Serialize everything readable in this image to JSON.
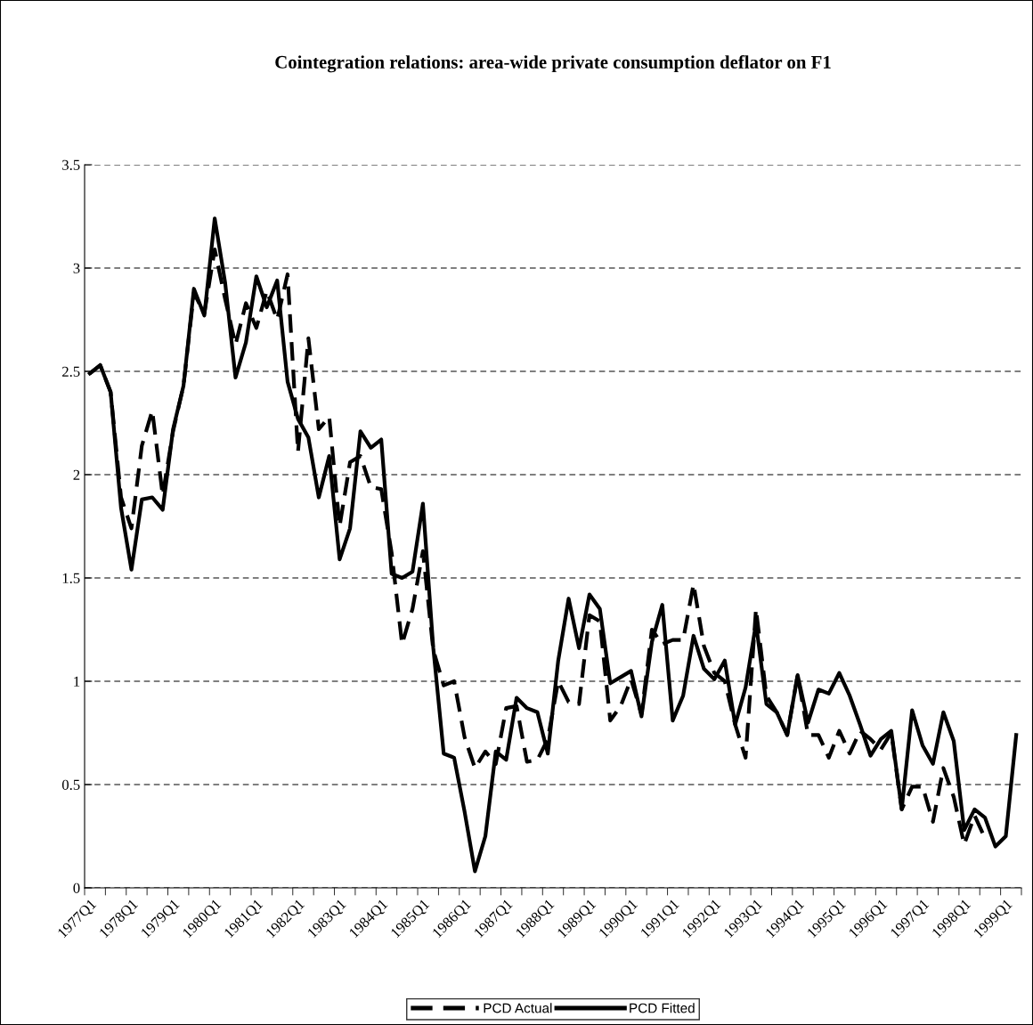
{
  "chart_data": {
    "type": "line",
    "title": "Cointegration relations: area-wide private consumption deflator on F1",
    "categories": [
      "1977Q1",
      null,
      null,
      null,
      "1978Q1",
      null,
      null,
      null,
      "1979Q1",
      null,
      null,
      null,
      "1980Q1",
      null,
      null,
      null,
      "1981Q1",
      null,
      null,
      null,
      "1982Q1",
      null,
      null,
      null,
      "1983Q1",
      null,
      null,
      null,
      "1984Q1",
      null,
      null,
      null,
      "1985Q1",
      null,
      null,
      null,
      "1986Q1",
      null,
      null,
      null,
      "1987Q1",
      null,
      null,
      null,
      "1988Q1",
      null,
      null,
      null,
      "1989Q1",
      null,
      null,
      null,
      "1990Q1",
      null,
      null,
      null,
      "1991Q1",
      null,
      null,
      null,
      "1992Q1",
      null,
      null,
      null,
      "1993Q1",
      null,
      null,
      null,
      "1994Q1",
      null,
      null,
      null,
      "1995Q1",
      null,
      null,
      null,
      "1996Q1",
      null,
      null,
      null,
      "1997Q1",
      null,
      null,
      null,
      "1998Q1",
      null,
      null,
      null,
      "1999Q1",
      null
    ],
    "series": [
      {
        "name": "PCD Actual",
        "color": "#000000",
        "line_style": "dashed",
        "values": [
          2.49,
          2.53,
          2.4,
          1.89,
          1.74,
          2.14,
          2.31,
          1.9,
          2.21,
          2.43,
          2.88,
          2.78,
          3.09,
          2.85,
          2.63,
          2.83,
          2.71,
          2.89,
          2.75,
          2.97,
          2.11,
          2.66,
          2.22,
          2.28,
          1.75,
          2.06,
          2.09,
          1.94,
          1.93,
          1.62,
          1.18,
          1.35,
          1.63,
          1.15,
          0.98,
          1.0,
          0.73,
          0.58,
          0.66,
          0.6,
          0.87,
          0.88,
          0.61,
          0.62,
          0.72,
          1.0,
          0.9,
          0.89,
          1.32,
          1.29,
          0.81,
          0.88,
          1.01,
          0.84,
          1.25,
          1.18,
          1.2,
          1.2,
          1.47,
          1.17,
          1.04,
          1.0,
          0.79,
          0.63,
          1.35,
          0.93,
          0.85,
          0.74,
          1.03,
          0.74,
          0.74,
          0.63,
          0.76,
          0.65,
          0.76,
          0.72,
          0.67,
          0.75,
          0.38,
          0.49,
          0.49,
          0.32,
          0.58,
          0.44,
          0.21,
          0.35,
          0.24,
          null,
          null,
          null
        ]
      },
      {
        "name": "PCD Fitted",
        "color": "#000000",
        "line_style": "solid",
        "values": [
          2.49,
          2.53,
          2.4,
          1.84,
          1.54,
          1.88,
          1.89,
          1.83,
          2.22,
          2.43,
          2.9,
          2.77,
          3.24,
          2.93,
          2.47,
          2.64,
          2.96,
          2.81,
          2.94,
          2.45,
          2.27,
          2.18,
          1.89,
          2.09,
          1.59,
          1.74,
          2.21,
          2.13,
          2.17,
          1.52,
          1.5,
          1.53,
          1.86,
          1.16,
          0.65,
          0.63,
          0.37,
          0.08,
          0.25,
          0.66,
          0.62,
          0.92,
          0.87,
          0.85,
          0.65,
          1.1,
          1.4,
          1.16,
          1.42,
          1.35,
          0.99,
          1.02,
          1.05,
          0.83,
          1.19,
          1.37,
          0.81,
          0.93,
          1.22,
          1.06,
          1.01,
          1.1,
          0.79,
          0.97,
          1.28,
          0.89,
          0.85,
          0.74,
          1.03,
          0.8,
          0.96,
          0.94,
          1.04,
          0.93,
          0.79,
          0.64,
          0.72,
          0.76,
          0.38,
          0.86,
          0.69,
          0.6,
          0.85,
          0.71,
          0.28,
          0.38,
          0.34,
          0.2,
          0.25,
          0.74
        ]
      }
    ],
    "ylim": [
      0,
      3.5
    ],
    "yticks": [
      0,
      0.5,
      1,
      1.5,
      2,
      2.5,
      3,
      3.5
    ],
    "grid": "y",
    "legend": "bottom",
    "marker": "none"
  }
}
